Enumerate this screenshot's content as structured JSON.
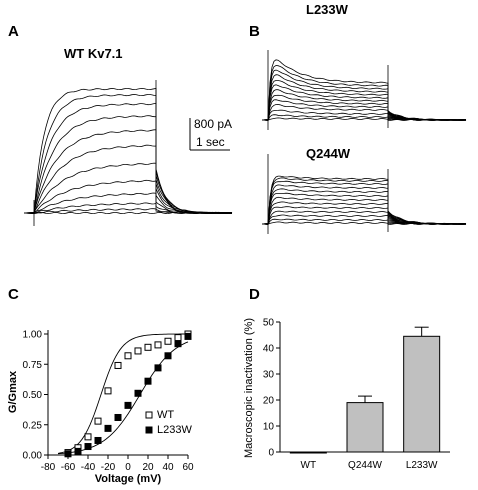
{
  "panels": {
    "a": {
      "letter": "A",
      "title": "WT Kv7.1"
    },
    "b": {
      "letter": "B",
      "title_top": "L233W",
      "title_bottom": "Q244W"
    },
    "c": {
      "letter": "C"
    },
    "d": {
      "letter": "D"
    }
  },
  "scale_bar": {
    "current": "800 pA",
    "time": "1 sec"
  },
  "chart_data": [
    {
      "type": "scatter",
      "panel": "C",
      "xlabel": "Voltage (mV)",
      "ylabel": "G/Gmax",
      "xlim": [
        -80,
        60
      ],
      "ylim": [
        0,
        1
      ],
      "xticks": [
        -80,
        -60,
        -40,
        -20,
        0,
        20,
        40,
        60
      ],
      "yticks": [
        0.0,
        0.25,
        0.5,
        0.75,
        1.0
      ],
      "ytick_labels": [
        "0.00",
        "0.25",
        "0.50",
        "0.75",
        "1.00"
      ],
      "legend_position": "lower-right",
      "series": [
        {
          "name": "WT",
          "marker": "open-square",
          "x": [
            -60,
            -50,
            -40,
            -30,
            -20,
            -10,
            0,
            10,
            20,
            30,
            40,
            50,
            60
          ],
          "y": [
            0.02,
            0.06,
            0.15,
            0.28,
            0.53,
            0.74,
            0.82,
            0.86,
            0.89,
            0.91,
            0.94,
            0.97,
            1.0
          ]
        },
        {
          "name": "L233W",
          "marker": "filled-square",
          "x": [
            -60,
            -50,
            -40,
            -30,
            -20,
            -10,
            0,
            10,
            20,
            30,
            40,
            50,
            60
          ],
          "y": [
            0.01,
            0.03,
            0.07,
            0.12,
            0.22,
            0.31,
            0.41,
            0.51,
            0.61,
            0.72,
            0.82,
            0.92,
            0.98
          ]
        }
      ]
    },
    {
      "type": "bar",
      "panel": "D",
      "categories": [
        "WT",
        "Q244W",
        "L233W"
      ],
      "values": [
        0,
        19,
        44.5
      ],
      "errors": [
        0,
        2.5,
        3.5
      ],
      "ylabel": "Macroscopic inactivation (%)",
      "ylim": [
        0,
        50
      ],
      "yticks": [
        0,
        10,
        20,
        30,
        40,
        50
      ],
      "bar_color": "#c0c0c0"
    }
  ]
}
